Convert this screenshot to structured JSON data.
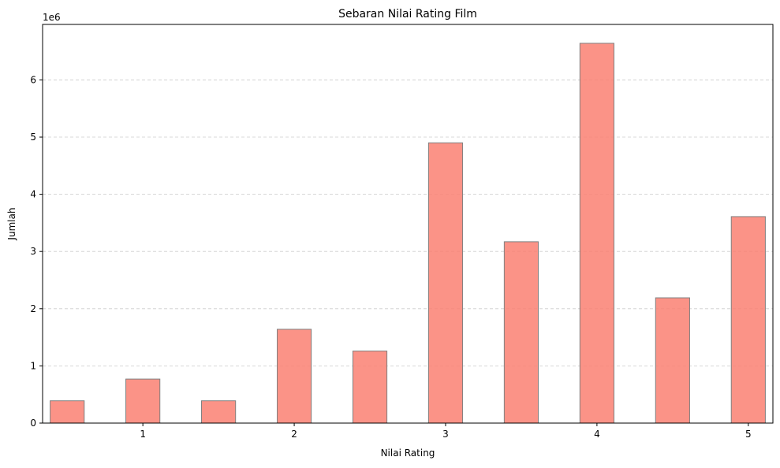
{
  "chart_data": {
    "type": "bar",
    "title": "Sebaran Nilai Rating Film",
    "xlabel": "Nilai Rating",
    "ylabel": "Jumlah",
    "y_offset_label": "1e6",
    "x_ticks": [
      1,
      2,
      3,
      4,
      5
    ],
    "y_ticks": [
      0,
      1,
      2,
      3,
      4,
      5,
      6
    ],
    "x_range": [
      0.3375,
      5.1625
    ],
    "y_range": [
      0,
      6.97
    ],
    "grid": "y-dashed",
    "bar_width": 0.225,
    "colors": {
      "bar_fill": "#fa8072",
      "bar_fill_opacity": 0.85,
      "bar_edge": "#808080",
      "grid": "#cccccc"
    },
    "series": [
      {
        "x": [
          0.5,
          1.0,
          1.5,
          2.0,
          2.5,
          3.0,
          3.5,
          4.0,
          4.5,
          5.0
        ],
        "values": [
          0.39,
          0.77,
          0.39,
          1.64,
          1.26,
          4.9,
          3.17,
          6.64,
          2.19,
          3.61
        ]
      }
    ]
  }
}
